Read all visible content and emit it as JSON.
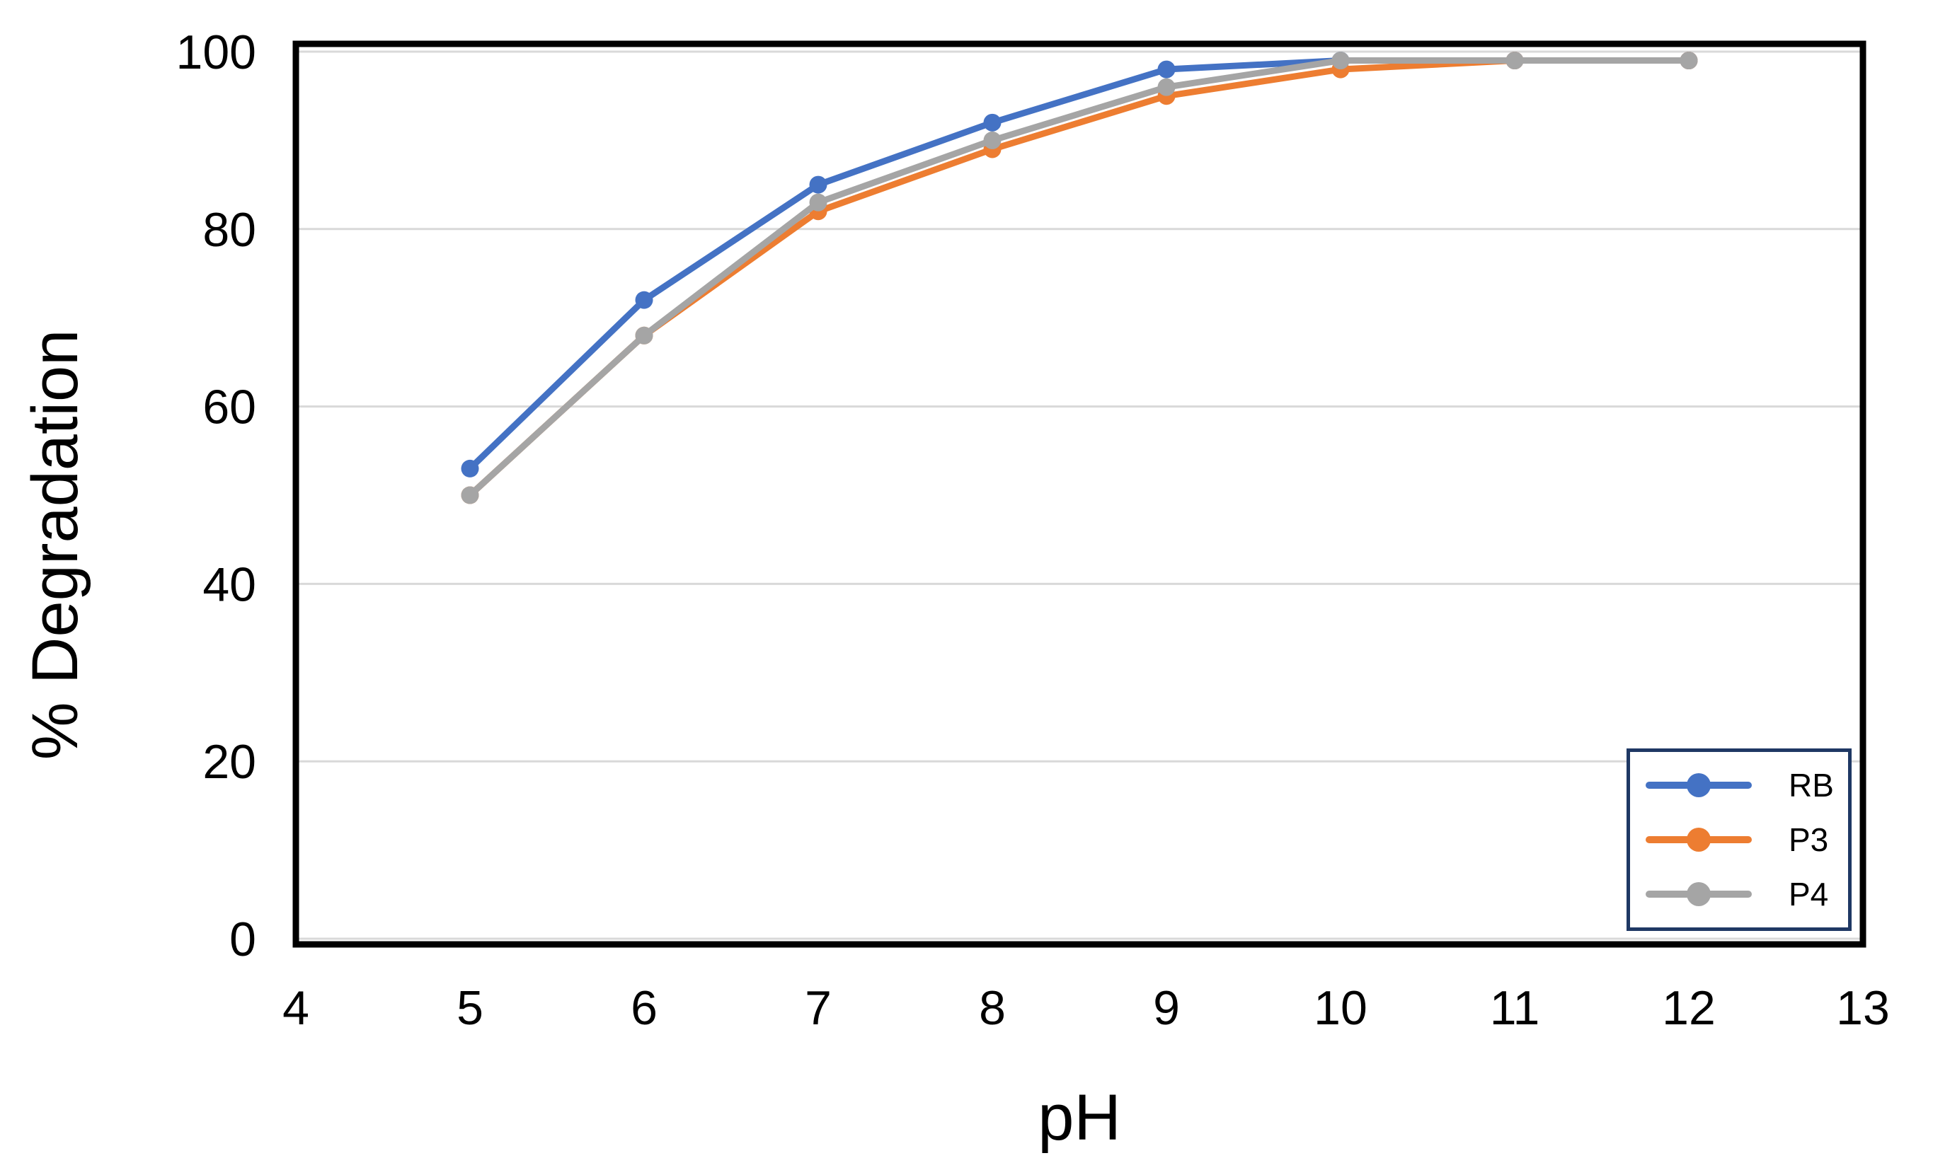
{
  "figure": {
    "background": "#ffffff"
  },
  "chart_data": {
    "type": "line",
    "title": "",
    "xlabel": "pH",
    "ylabel": "% Degradation",
    "x": [
      5,
      6,
      7,
      8,
      9,
      10,
      11,
      12
    ],
    "series": [
      {
        "name": "RB",
        "color": "#4472C4",
        "values": [
          53,
          72,
          85,
          92,
          98,
          99,
          99,
          99
        ]
      },
      {
        "name": "P3",
        "color": "#ED7D31",
        "values": [
          50,
          68,
          82,
          89,
          95,
          98,
          99,
          99
        ]
      },
      {
        "name": "P4",
        "color": "#A5A5A5",
        "values": [
          50,
          68,
          83,
          90,
          96,
          99,
          99,
          99
        ]
      }
    ],
    "xlim": [
      4,
      13
    ],
    "ylim": [
      0,
      100
    ],
    "x_ticks": [
      "4",
      "5",
      "6",
      "7",
      "8",
      "9",
      "10",
      "11",
      "12",
      "13"
    ],
    "y_ticks": [
      "0",
      "20",
      "40",
      "60",
      "80",
      "100"
    ],
    "grid": "horizontal",
    "legend_position": "inside-bottom-right",
    "style": {
      "gridline_color": "#D9D9D9",
      "plot_border_color": "#000000",
      "legend_border_color": "#1F3864",
      "tick_label_color": "#000000"
    }
  }
}
